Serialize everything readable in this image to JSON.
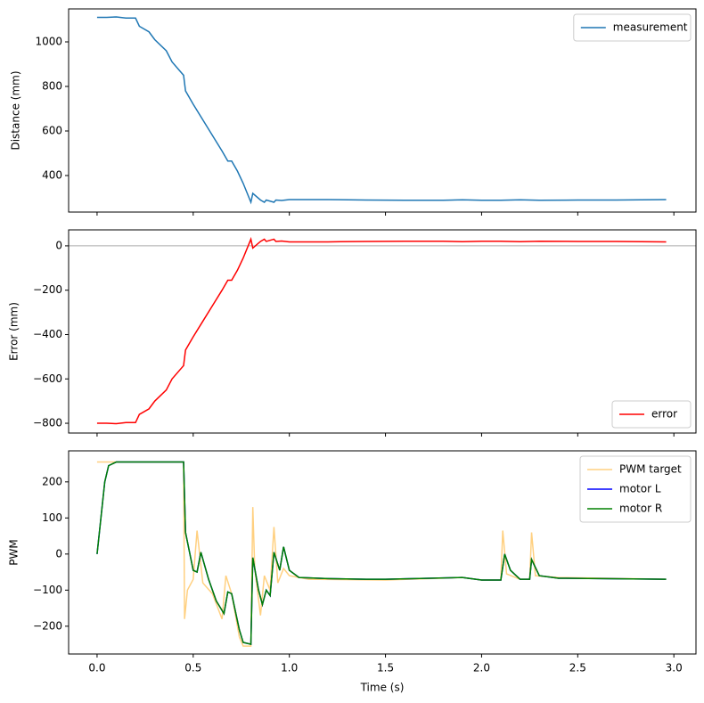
{
  "chart_data": [
    {
      "type": "line",
      "ylabel": "Distance (mm)",
      "xlim": [
        -0.148,
        3.115
      ],
      "xticks": [
        0,
        0.5,
        1,
        1.5,
        2,
        2.5,
        3
      ],
      "ylim": [
        236,
        1148
      ],
      "yticks": [
        400,
        600,
        800,
        1000
      ],
      "legend": "upper right",
      "series": [
        {
          "name": "measurement",
          "color": "#1f77b4",
          "x": [
            0,
            0.05,
            0.1,
            0.15,
            0.2,
            0.22,
            0.27,
            0.3,
            0.36,
            0.39,
            0.43,
            0.45,
            0.46,
            0.5,
            0.55,
            0.6,
            0.65,
            0.68,
            0.7,
            0.73,
            0.76,
            0.8,
            0.81,
            0.85,
            0.87,
            0.88,
            0.9,
            0.92,
            0.93,
            0.96,
            1.0,
            1.2,
            1.4,
            1.6,
            1.8,
            1.9,
            2.0,
            2.1,
            2.2,
            2.3,
            2.5,
            2.7,
            2.96
          ],
          "values": [
            1110,
            1110,
            1112,
            1107,
            1107,
            1070,
            1045,
            1010,
            960,
            910,
            870,
            850,
            780,
            720,
            650,
            580,
            510,
            465,
            465,
            420,
            365,
            280,
            320,
            290,
            280,
            290,
            285,
            280,
            290,
            288,
            292,
            292,
            290,
            289,
            289,
            291,
            289,
            289,
            291,
            289,
            290,
            290,
            292
          ]
        }
      ]
    },
    {
      "type": "line",
      "ylabel": "Error (mm)",
      "xlim": [
        -0.148,
        3.115
      ],
      "xticks": [
        0,
        0.5,
        1,
        1.5,
        2,
        2.5,
        3
      ],
      "ylim": [
        -844,
        72
      ],
      "yticks": [
        {
          "value": -800,
          "label": "−800"
        },
        {
          "value": -600,
          "label": "−600"
        },
        {
          "value": -400,
          "label": "−400"
        },
        {
          "value": -200,
          "label": "−200"
        },
        0
      ],
      "hline": 0,
      "legend": "lower right",
      "series": [
        {
          "name": "error",
          "color": "#ff0000",
          "x": [
            0,
            0.05,
            0.1,
            0.15,
            0.2,
            0.22,
            0.27,
            0.3,
            0.36,
            0.39,
            0.43,
            0.45,
            0.46,
            0.5,
            0.55,
            0.6,
            0.65,
            0.68,
            0.7,
            0.73,
            0.76,
            0.8,
            0.81,
            0.85,
            0.87,
            0.88,
            0.9,
            0.92,
            0.93,
            0.96,
            1.0,
            1.2,
            1.4,
            1.6,
            1.8,
            1.9,
            2.0,
            2.1,
            2.2,
            2.3,
            2.5,
            2.7,
            2.96
          ],
          "values": [
            -800,
            -800,
            -802,
            -797,
            -797,
            -760,
            -735,
            -700,
            -650,
            -600,
            -560,
            -540,
            -470,
            -410,
            -340,
            -270,
            -200,
            -155,
            -155,
            -110,
            -55,
            30,
            -10,
            20,
            30,
            20,
            25,
            30,
            20,
            22,
            18,
            18,
            20,
            21,
            21,
            19,
            21,
            21,
            19,
            21,
            20,
            20,
            18
          ]
        }
      ]
    },
    {
      "type": "line",
      "ylabel": "PWM",
      "xlabel": "Time (s)",
      "xlim": [
        -0.148,
        3.115
      ],
      "xticks": [
        {
          "value": 0,
          "label": "0.0"
        },
        {
          "value": 0.5,
          "label": "0.5"
        },
        {
          "value": 1,
          "label": "1.0"
        },
        {
          "value": 1.5,
          "label": "1.5"
        },
        {
          "value": 2,
          "label": "2.0"
        },
        {
          "value": 2.5,
          "label": "2.5"
        },
        {
          "value": 3,
          "label": "3.0"
        }
      ],
      "ylim": [
        -277,
        286
      ],
      "yticks": [
        {
          "value": -200,
          "label": "−200"
        },
        {
          "value": -100,
          "label": "−100"
        },
        0,
        100,
        200
      ],
      "legend": "upper right",
      "series": [
        {
          "name": "PWM target",
          "color": "#ffd080",
          "x": [
            0,
            0.45,
            0.455,
            0.47,
            0.5,
            0.52,
            0.55,
            0.6,
            0.65,
            0.67,
            0.7,
            0.74,
            0.76,
            0.8,
            0.81,
            0.82,
            0.85,
            0.87,
            0.9,
            0.92,
            0.94,
            0.97,
            1.0,
            1.1,
            1.5,
            1.9,
            2.0,
            2.1,
            2.11,
            2.13,
            2.2,
            2.25,
            2.26,
            2.28,
            2.4,
            2.96
          ],
          "values": [
            255,
            255,
            -180,
            -100,
            -70,
            65,
            -80,
            -110,
            -180,
            -60,
            -110,
            -230,
            -255,
            -255,
            130,
            -40,
            -170,
            -60,
            -100,
            75,
            -80,
            -40,
            -60,
            -70,
            -72,
            -65,
            -72,
            -72,
            65,
            -55,
            -70,
            -70,
            60,
            -60,
            -65,
            -70
          ]
        },
        {
          "name": "motor L",
          "color": "#0000ff",
          "x": [
            0,
            0.02,
            0.04,
            0.06,
            0.1,
            0.45,
            0.46,
            0.5,
            0.52,
            0.54,
            0.58,
            0.62,
            0.66,
            0.68,
            0.7,
            0.74,
            0.76,
            0.8,
            0.81,
            0.84,
            0.86,
            0.88,
            0.9,
            0.92,
            0.95,
            0.97,
            1.0,
            1.05,
            1.2,
            1.4,
            1.5,
            1.9,
            2.0,
            2.1,
            2.12,
            2.15,
            2.2,
            2.25,
            2.26,
            2.3,
            2.4,
            2.96
          ],
          "values": [
            0,
            100,
            200,
            245,
            255,
            255,
            60,
            -45,
            -50,
            5,
            -70,
            -130,
            -165,
            -105,
            -110,
            -210,
            -245,
            -250,
            -10,
            -100,
            -140,
            -100,
            -115,
            5,
            -45,
            20,
            -45,
            -65,
            -68,
            -70,
            -70,
            -65,
            -72,
            -72,
            0,
            -45,
            -70,
            -70,
            -15,
            -60,
            -67,
            -70
          ]
        },
        {
          "name": "motor R",
          "color": "#008000",
          "x": [
            0,
            0.02,
            0.04,
            0.06,
            0.1,
            0.45,
            0.46,
            0.5,
            0.52,
            0.54,
            0.58,
            0.62,
            0.66,
            0.68,
            0.7,
            0.74,
            0.76,
            0.8,
            0.81,
            0.84,
            0.86,
            0.88,
            0.9,
            0.92,
            0.95,
            0.97,
            1.0,
            1.05,
            1.2,
            1.4,
            1.5,
            1.9,
            2.0,
            2.1,
            2.12,
            2.15,
            2.2,
            2.25,
            2.26,
            2.3,
            2.4,
            2.96
          ],
          "values": [
            0,
            100,
            200,
            245,
            255,
            255,
            60,
            -45,
            -50,
            5,
            -70,
            -130,
            -165,
            -105,
            -110,
            -210,
            -245,
            -250,
            -10,
            -100,
            -140,
            -100,
            -115,
            5,
            -45,
            20,
            -45,
            -65,
            -68,
            -70,
            -70,
            -65,
            -72,
            -72,
            0,
            -45,
            -70,
            -70,
            -15,
            -60,
            -67,
            -70
          ]
        }
      ]
    }
  ]
}
